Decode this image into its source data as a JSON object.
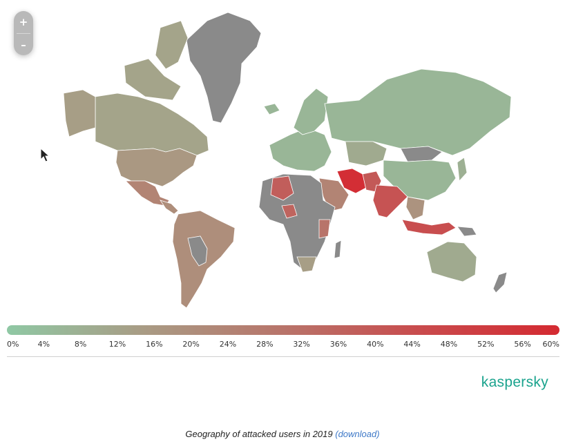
{
  "map": {
    "zoom_in_label": "+",
    "zoom_out_label": "–",
    "colors": {
      "no_data": "#8a8a8a",
      "low": "#8fc8a4",
      "mid": "#a99b84",
      "high": "#c94b4d",
      "max": "#d42a31"
    },
    "regions": [
      {
        "name": "north-america",
        "value": 12
      },
      {
        "name": "alaska",
        "value": 14
      },
      {
        "name": "greenland",
        "value": null
      },
      {
        "name": "usa",
        "value": 16
      },
      {
        "name": "mexico",
        "value": 24
      },
      {
        "name": "central-america",
        "value": 20
      },
      {
        "name": "south-america",
        "value": 20
      },
      {
        "name": "bolivia-paraguay",
        "value": null
      },
      {
        "name": "europe",
        "value": 6
      },
      {
        "name": "north-africa-algeria",
        "value": 38
      },
      {
        "name": "africa",
        "value": null
      },
      {
        "name": "nigeria",
        "value": 36
      },
      {
        "name": "east-africa",
        "value": 30
      },
      {
        "name": "south-africa",
        "value": 14
      },
      {
        "name": "russia",
        "value": 6
      },
      {
        "name": "kazakhstan",
        "value": 10
      },
      {
        "name": "mongolia",
        "value": null
      },
      {
        "name": "china",
        "value": 6
      },
      {
        "name": "iran",
        "value": 58
      },
      {
        "name": "arabia",
        "value": 24
      },
      {
        "name": "pakistan-afghanistan",
        "value": 40
      },
      {
        "name": "india",
        "value": 42
      },
      {
        "name": "southeast-asia",
        "value": 18
      },
      {
        "name": "indonesia",
        "value": 44
      },
      {
        "name": "japan",
        "value": 8
      },
      {
        "name": "australia",
        "value": 10
      },
      {
        "name": "new-zealand",
        "value": null
      }
    ]
  },
  "legend": {
    "ticks": [
      "0%",
      "4%",
      "8%",
      "12%",
      "16%",
      "20%",
      "24%",
      "28%",
      "32%",
      "36%",
      "40%",
      "44%",
      "48%",
      "52%",
      "56%",
      "60%"
    ]
  },
  "brand": "kaspersky",
  "caption": {
    "text": "Geography of attacked users in 2019",
    "link": "(download)"
  }
}
